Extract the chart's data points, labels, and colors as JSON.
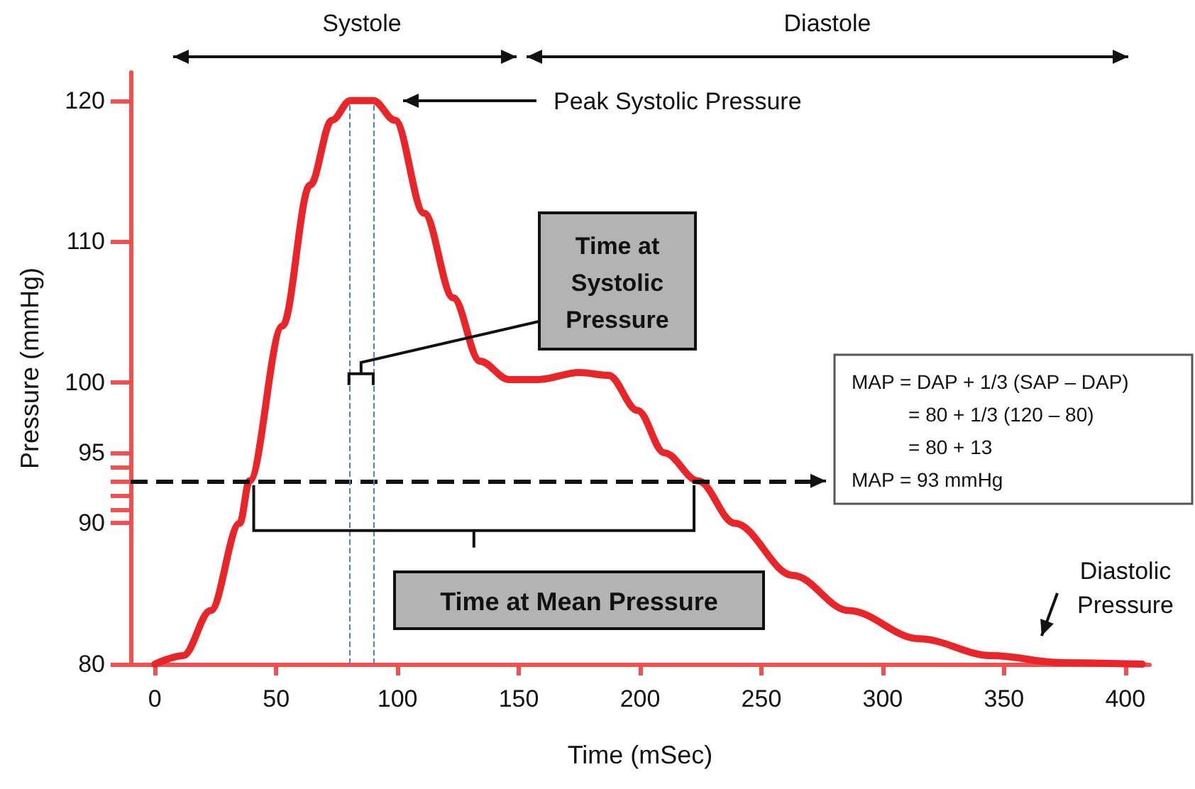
{
  "chart_data": {
    "type": "line",
    "xlabel": "Time (mSec)",
    "ylabel": "Pressure (mmHg)",
    "x": [
      0,
      11.7,
      23,
      35,
      39,
      52.6,
      64,
      73,
      80.6,
      90,
      99,
      111,
      123,
      134,
      146,
      158,
      175,
      187,
      199,
      210,
      224,
      239,
      263,
      286,
      315,
      345,
      374,
      407
    ],
    "series": [
      {
        "color": "#e8262a",
        "values": [
          80,
          80.6,
          83.8,
          90,
          93,
          104,
          114,
          118.6,
          120,
          120,
          118.6,
          112,
          106,
          101.5,
          100.2,
          100.2,
          100.7,
          100.5,
          98,
          95,
          93,
          90,
          86.3,
          83.8,
          81.8,
          80.6,
          80.1,
          80
        ]
      }
    ],
    "xlim": [
      -10,
      410
    ],
    "xticks": [
      0,
      50,
      100,
      150,
      200,
      250,
      300,
      350,
      400
    ],
    "ylim": [
      80,
      122
    ],
    "yticks": [
      80,
      {
        "value": 91,
        "label": null
      },
      {
        "value": 92,
        "label": null
      },
      90,
      {
        "value": 93,
        "label": null
      },
      {
        "value": 94,
        "label": null
      },
      95,
      100,
      110,
      120
    ],
    "marker": "none",
    "line_style": "solid",
    "ref_lines": [
      {
        "axis": "y",
        "value": 93,
        "color": "#111111",
        "line_style": "dashed"
      },
      {
        "axis": "x",
        "value": 80,
        "color": "#4a86c8",
        "line_style": "dashed"
      },
      {
        "axis": "x",
        "value": 90,
        "color": "#4a86c8",
        "line_style": "dashed"
      }
    ],
    "annotations": [
      "Systole",
      "Diastole",
      "Peak Systolic Pressure",
      "Time at Systolic Pressure",
      "Time at Mean Pressure",
      "MAP = DAP + 1/3 (SAP – DAP)",
      "= 80 + 1/3 (120 – 80)",
      "= 80 + 13",
      "MAP = 93 mmHg",
      {
        "text": "Diastolic Pressure",
        "x": 362,
        "y": 81
      }
    ]
  }
}
